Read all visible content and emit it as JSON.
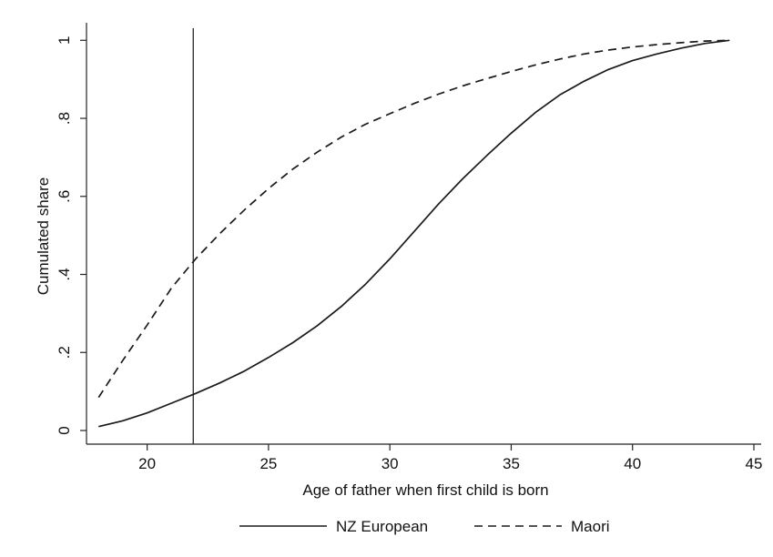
{
  "chart_data": {
    "type": "line",
    "title": "",
    "xlabel": "Age of father when first child is born",
    "ylabel": "Cumulated share",
    "xlim": [
      17.5,
      45.3
    ],
    "ylim": [
      -0.035,
      1.045
    ],
    "xticks": [
      20,
      25,
      30,
      35,
      40,
      45
    ],
    "xtick_labels": [
      "20",
      "25",
      "30",
      "35",
      "40",
      "45"
    ],
    "yticks": [
      0,
      0.2,
      0.4,
      0.6,
      0.8,
      1
    ],
    "ytick_labels": [
      "0",
      ".2",
      ".4",
      ".6",
      ".8",
      "1"
    ],
    "grid": false,
    "legend_position": "bottom",
    "reference_line": {
      "x": 21.9
    },
    "x": [
      18,
      19,
      20,
      21,
      22,
      23,
      24,
      25,
      26,
      27,
      28,
      29,
      30,
      31,
      32,
      33,
      34,
      35,
      36,
      37,
      38,
      39,
      40,
      41,
      42,
      43,
      44
    ],
    "series": [
      {
        "name": "NZ European",
        "style": "solid",
        "color": "#1a1a1a",
        "values": [
          0.01,
          0.025,
          0.045,
          0.07,
          0.095,
          0.122,
          0.152,
          0.187,
          0.225,
          0.268,
          0.318,
          0.375,
          0.44,
          0.51,
          0.58,
          0.645,
          0.705,
          0.762,
          0.815,
          0.86,
          0.895,
          0.925,
          0.948,
          0.965,
          0.98,
          0.992,
          1.0
        ]
      },
      {
        "name": "Maori",
        "style": "dashed",
        "color": "#1a1a1a",
        "values": [
          0.085,
          0.18,
          0.27,
          0.365,
          0.44,
          0.505,
          0.565,
          0.62,
          0.67,
          0.713,
          0.752,
          0.785,
          0.812,
          0.838,
          0.862,
          0.883,
          0.902,
          0.92,
          0.937,
          0.952,
          0.965,
          0.975,
          0.983,
          0.989,
          0.994,
          0.998,
          1.0
        ]
      }
    ]
  }
}
